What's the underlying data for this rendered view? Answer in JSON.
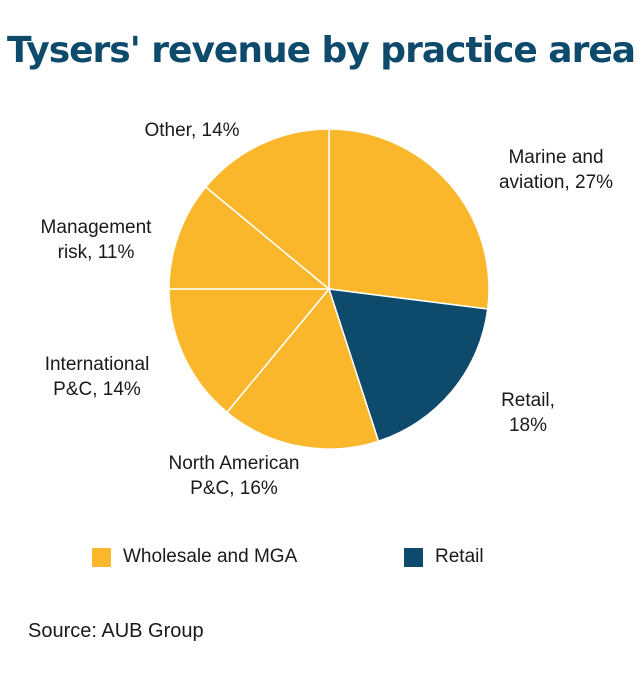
{
  "title": "Tysers' revenue by practice area",
  "chart_data": {
    "type": "pie",
    "title": "Tysers' revenue by practice area",
    "unit": "%",
    "slices": [
      {
        "label_lines": [
          "Marine and",
          "aviation, 27%"
        ],
        "name": "Marine and aviation",
        "value": 27,
        "group": "Wholesale and MGA"
      },
      {
        "label_lines": [
          "Retail,",
          "18%"
        ],
        "name": "Retail",
        "value": 18,
        "group": "Retail"
      },
      {
        "label_lines": [
          "North American",
          "P&C, 16%"
        ],
        "name": "North American P&C",
        "value": 16,
        "group": "Wholesale and MGA"
      },
      {
        "label_lines": [
          "International",
          "P&C, 14%"
        ],
        "name": "International P&C",
        "value": 14,
        "group": "Wholesale and MGA"
      },
      {
        "label_lines": [
          "Management",
          "risk, 11%"
        ],
        "name": "Management risk",
        "value": 11,
        "group": "Wholesale and MGA"
      },
      {
        "label_lines": [
          "Other, 14%"
        ],
        "name": "Other",
        "value": 14,
        "group": "Wholesale and MGA"
      }
    ],
    "legend": [
      {
        "label": "Wholesale and MGA",
        "color": "#fbb72c"
      },
      {
        "label": "Retail",
        "color": "#0d4a6b"
      }
    ],
    "legend_position": "bottom",
    "start_angle": "12 o'clock",
    "direction": "clockwise"
  },
  "source": "Source: AUB Group"
}
